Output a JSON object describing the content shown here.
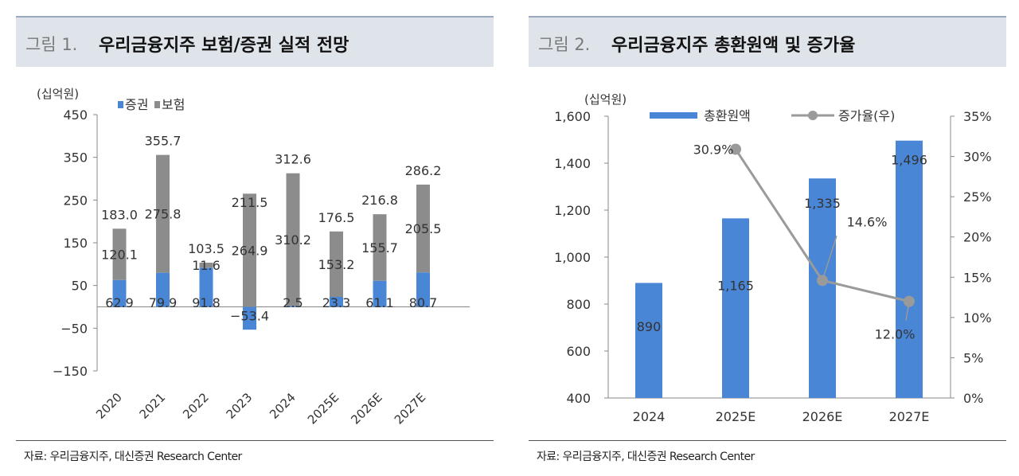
{
  "figure1": {
    "number": "그림 1.",
    "title": "우리금융지주 보험/증권 실적 전망",
    "source": "자료: 우리금융지주, 대신증권 Research Center",
    "chart_data": {
      "type": "bar",
      "stacked": true,
      "unit_label": "(십억원)",
      "categories": [
        "2020",
        "2021",
        "2022",
        "2023",
        "2024",
        "2025E",
        "2026E",
        "2027E"
      ],
      "series": [
        {
          "name": "증권",
          "color": "#4a86d6",
          "values": [
            62.9,
            79.9,
            91.8,
            -53.4,
            2.5,
            23.3,
            61.1,
            80.7
          ]
        },
        {
          "name": "보험",
          "color": "#8c8c8c",
          "values": [
            120.1,
            275.8,
            11.6,
            264.9,
            310.2,
            153.2,
            155.7,
            205.5
          ]
        }
      ],
      "totals": [
        183.0,
        355.7,
        103.5,
        211.5,
        312.6,
        176.5,
        216.8,
        286.2
      ],
      "total_labels": [
        "183.0",
        "355.7",
        "103.5",
        "211.5",
        "312.6",
        "176.5",
        "216.8",
        "286.2"
      ],
      "series_labels": [
        [
          "62.9",
          "79.9",
          "91.8",
          "−53.4",
          "2.5",
          "23.3",
          "61.1",
          "80.7"
        ],
        [
          "120.1",
          "275.8",
          "11.6",
          "264.9",
          "310.2",
          "153.2",
          "155.7",
          "205.5"
        ]
      ],
      "yticks": [
        450,
        350,
        250,
        150,
        50,
        -50,
        -150
      ],
      "ytick_labels": [
        "450",
        "350",
        "250",
        "150",
        "50",
        "−50",
        "−150"
      ],
      "ylim": [
        -150,
        450
      ]
    }
  },
  "figure2": {
    "number": "그림 2.",
    "title": "우리금융지주 총환원액 및 증가율",
    "source": "자료: 우리금융지주, 대신증권 Research Center",
    "chart_data": {
      "type": "bar+line",
      "unit_label": "(십억원)",
      "categories": [
        "2024",
        "2025E",
        "2026E",
        "2027E"
      ],
      "bar_series": {
        "name": "총환원액",
        "color": "#4a86d6",
        "values": [
          890,
          1165,
          1335,
          1496
        ],
        "labels": [
          "890",
          "1,165",
          "1,335",
          "1,496"
        ]
      },
      "line_series": {
        "name": "증가율(우)",
        "color": "#9a9a9a",
        "values": [
          null,
          30.9,
          14.6,
          12.0
        ],
        "labels": [
          "",
          "30.9%",
          "14.6%",
          "12.0%"
        ]
      },
      "left_ylim": [
        400,
        1600
      ],
      "left_ticks": [
        1600,
        1400,
        1200,
        1000,
        800,
        600,
        400
      ],
      "left_tick_labels": [
        "1,600",
        "1,400",
        "1,200",
        "1,000",
        "800",
        "600",
        "400"
      ],
      "right_ylim": [
        0,
        35
      ],
      "right_ticks": [
        35,
        30,
        25,
        20,
        15,
        10,
        5,
        0
      ],
      "right_tick_labels": [
        "35%",
        "30%",
        "25%",
        "20%",
        "15%",
        "10%",
        "5%",
        "0%"
      ]
    }
  }
}
